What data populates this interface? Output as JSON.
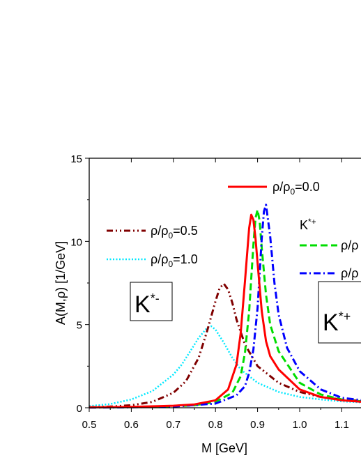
{
  "chart_data": {
    "type": "line",
    "xlabel": "M [GeV]",
    "ylabel": "A(M,ρ) [1/GeV]",
    "xlim": [
      0.5,
      1.15
    ],
    "ylim": [
      0,
      15
    ],
    "xticks": [
      "0.5",
      "0.6",
      "0.7",
      "0.8",
      "0.9",
      "1.0",
      "1.1"
    ],
    "yticks": [
      "0",
      "5",
      "10",
      "15"
    ],
    "grid": false,
    "series": [
      {
        "name": "ρ/ρ0=0.0",
        "color": "#ff0000",
        "style": "solid",
        "x": [
          0.5,
          0.6,
          0.7,
          0.75,
          0.8,
          0.83,
          0.85,
          0.86,
          0.87,
          0.88,
          0.885,
          0.89,
          0.895,
          0.9,
          0.91,
          0.92,
          0.93,
          0.95,
          1.0,
          1.05,
          1.1,
          1.15
        ],
        "y": [
          0.02,
          0.05,
          0.12,
          0.2,
          0.45,
          1.1,
          2.6,
          4.5,
          7.6,
          10.8,
          11.6,
          11.3,
          10.2,
          8.7,
          5.8,
          4.0,
          3.1,
          2.3,
          1.1,
          0.65,
          0.45,
          0.35
        ]
      },
      {
        "name": "ρ/ρ0=0.5",
        "color": "#800000",
        "style": "dash-dot-dot",
        "x": [
          0.5,
          0.55,
          0.6,
          0.65,
          0.7,
          0.73,
          0.76,
          0.78,
          0.8,
          0.81,
          0.82,
          0.83,
          0.84,
          0.85,
          0.87,
          0.9,
          0.95,
          1.0,
          1.05,
          1.1,
          1.15
        ],
        "y": [
          0.03,
          0.07,
          0.15,
          0.35,
          0.9,
          1.6,
          3.0,
          4.6,
          6.4,
          7.2,
          7.45,
          7.1,
          6.3,
          5.3,
          3.8,
          2.5,
          1.5,
          0.95,
          0.65,
          0.5,
          0.4
        ]
      },
      {
        "name": "ρ/ρ0=1.0",
        "color": "#00e8ff",
        "style": "dotted",
        "x": [
          0.5,
          0.55,
          0.6,
          0.65,
          0.7,
          0.72,
          0.74,
          0.76,
          0.78,
          0.79,
          0.8,
          0.82,
          0.84,
          0.86,
          0.9,
          0.95,
          1.0,
          1.05,
          1.1,
          1.15
        ],
        "y": [
          0.1,
          0.22,
          0.5,
          1.0,
          2.0,
          2.6,
          3.4,
          4.2,
          4.8,
          4.9,
          4.7,
          3.9,
          3.0,
          2.3,
          1.5,
          0.95,
          0.65,
          0.5,
          0.38,
          0.32
        ]
      },
      {
        "name": "ρ/ρ",
        "color": "#00dd00",
        "style": "dashed",
        "x": [
          0.5,
          0.6,
          0.7,
          0.75,
          0.8,
          0.84,
          0.86,
          0.87,
          0.88,
          0.89,
          0.895,
          0.9,
          0.905,
          0.91,
          0.92,
          0.93,
          0.95,
          1.0,
          1.05,
          1.1,
          1.15
        ],
        "y": [
          0.02,
          0.04,
          0.08,
          0.15,
          0.35,
          0.9,
          1.9,
          3.3,
          5.8,
          9.8,
          11.4,
          11.9,
          11.2,
          9.6,
          6.8,
          5.0,
          3.4,
          1.5,
          0.8,
          0.5,
          0.38
        ]
      },
      {
        "name": "ρ/ρ",
        "color": "#0000ff",
        "style": "dash-dot",
        "x": [
          0.5,
          0.6,
          0.7,
          0.8,
          0.85,
          0.87,
          0.88,
          0.89,
          0.9,
          0.91,
          0.915,
          0.92,
          0.93,
          0.94,
          0.95,
          0.97,
          1.0,
          1.05,
          1.1,
          1.15
        ],
        "y": [
          0.01,
          0.03,
          0.07,
          0.25,
          0.75,
          1.3,
          2.1,
          3.5,
          6.0,
          10.2,
          11.8,
          12.2,
          10.3,
          7.5,
          5.6,
          3.6,
          2.2,
          1.1,
          0.6,
          0.45
        ]
      }
    ],
    "legend": {
      "label_00": "ρ/ρ",
      "label_00_sub": "0",
      "label_00_tail": "=0.0",
      "label_05": "ρ/ρ",
      "label_05_sub": "0",
      "label_05_tail": "=0.5",
      "label_10": "ρ/ρ",
      "label_10_sub": "0",
      "label_10_tail": "=1.0",
      "kplus_header": "K",
      "kplus_header_sup": "*+",
      "kplus_dash": "ρ/ρ",
      "kplus_dashdot": "ρ/ρ"
    },
    "annotations": {
      "left_box": {
        "main": "K",
        "sup": "*-"
      },
      "right_box": {
        "main": "K",
        "sup": "*+"
      }
    }
  }
}
